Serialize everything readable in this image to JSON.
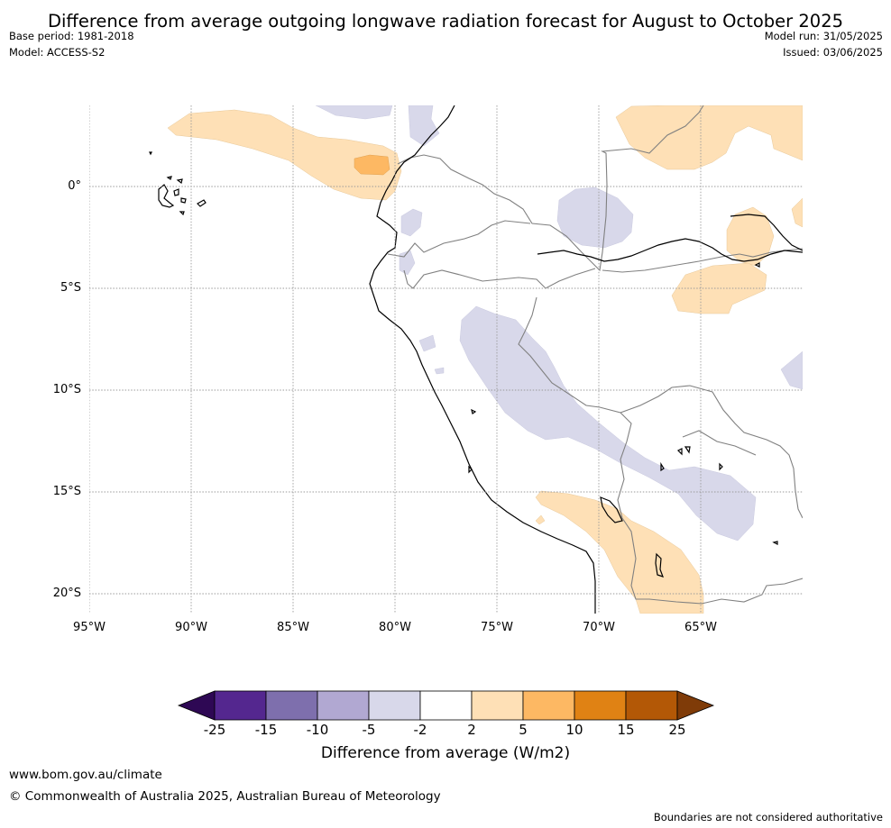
{
  "title": "Difference from average outgoing longwave radiation forecast for August to October 2025",
  "header": {
    "base_period": "Base period: 1981-2018",
    "model": "Model: ACCESS-S2",
    "model_run": "Model run: 31/05/2025",
    "issued": "Issued: 03/06/2025"
  },
  "map": {
    "lat_labels": [
      "0°",
      "5°S",
      "10°S",
      "15°S",
      "20°S"
    ],
    "lon_labels": [
      "95°W",
      "90°W",
      "85°W",
      "80°W",
      "75°W",
      "70°W",
      "65°W"
    ],
    "grid": true
  },
  "colorbar": {
    "ticks": [
      "-25",
      "-15",
      "-10",
      "-5",
      "-2",
      "2",
      "5",
      "10",
      "15",
      "25"
    ],
    "colors": [
      "#2e0854",
      "#54278f",
      "#7e6fad",
      "#b1a8d2",
      "#d8d8ea",
      "#ffffff",
      "#fee0b6",
      "#fdb863",
      "#e08214",
      "#b35806",
      "#7f3b08"
    ],
    "label": "Difference from average (W/m2)"
  },
  "footer": {
    "url": "www.bom.gov.au/climate",
    "copyright": "© Commonwealth of Australia 2025, Australian Bureau of Meteorology",
    "disclaimer": "Boundaries are not considered authoritative"
  }
}
